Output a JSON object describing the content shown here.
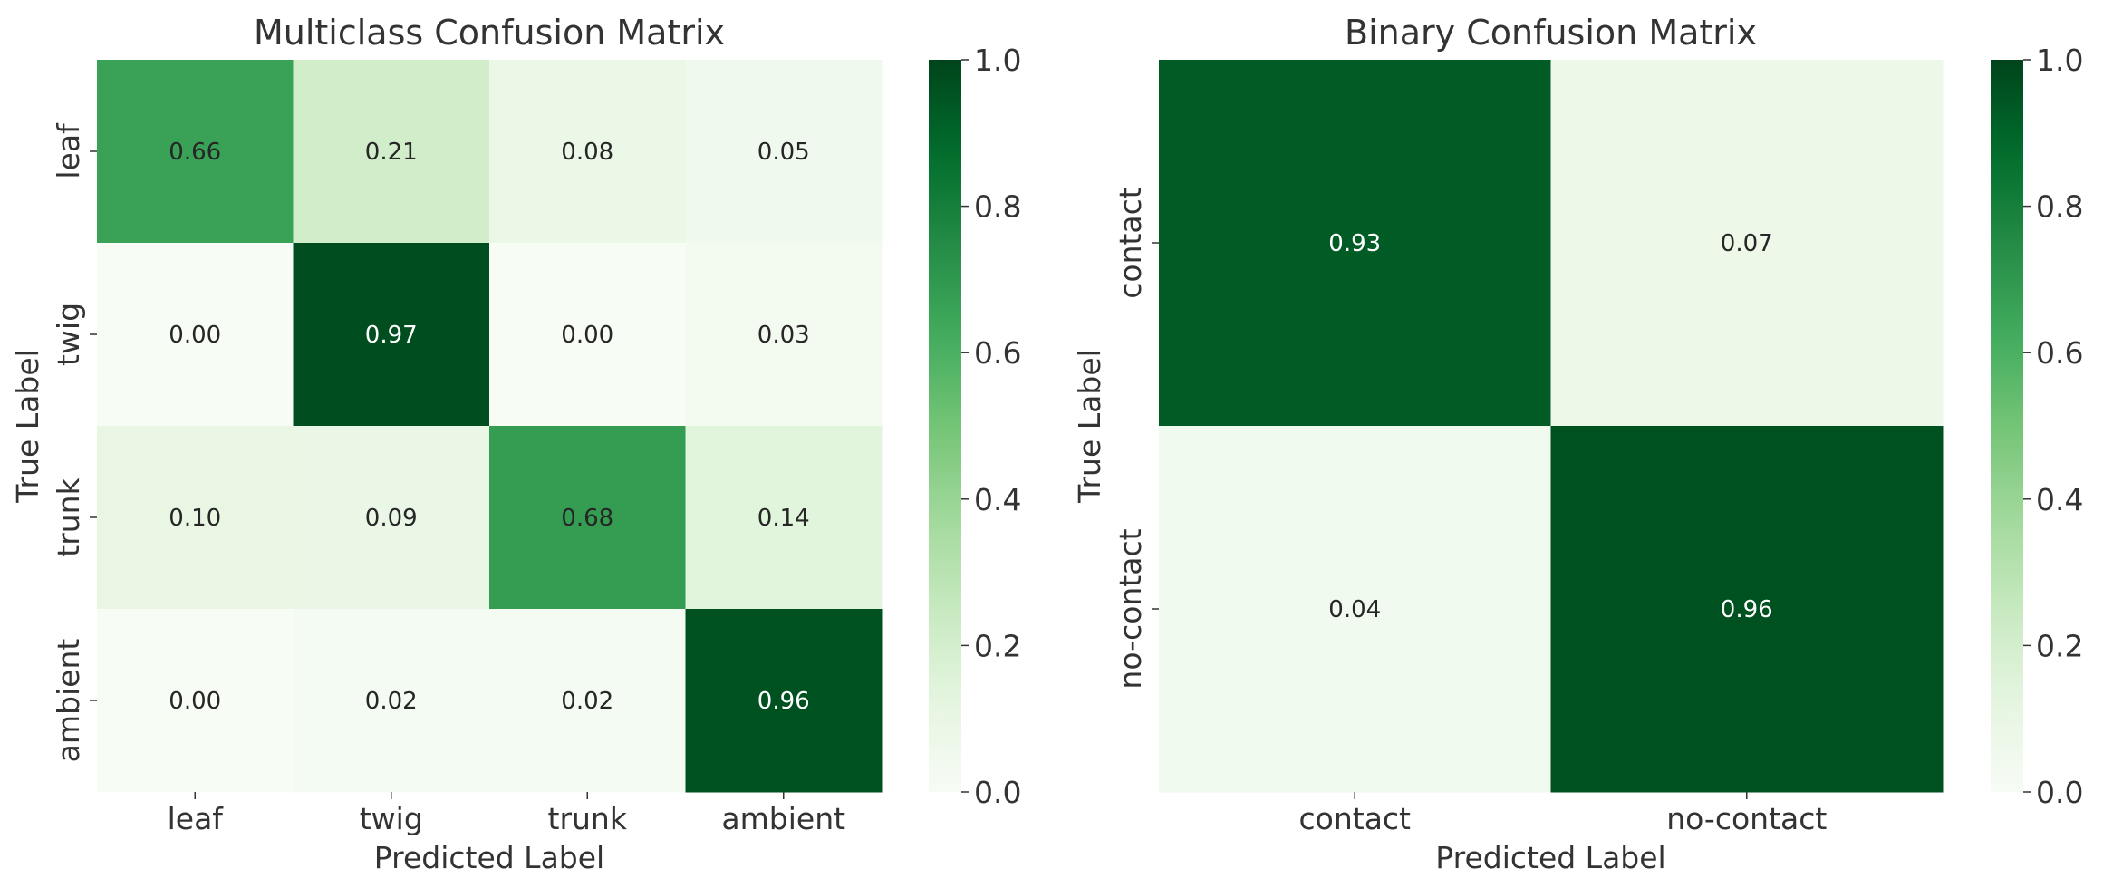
{
  "chart_data": [
    {
      "type": "heatmap",
      "title": "Multiclass Confusion Matrix",
      "xlabel": "Predicted Label",
      "ylabel": "True Label",
      "x_categories": [
        "leaf",
        "twig",
        "trunk",
        "ambient"
      ],
      "y_categories": [
        "leaf",
        "twig",
        "trunk",
        "ambient"
      ],
      "values": [
        [
          0.66,
          0.21,
          0.08,
          0.05
        ],
        [
          0.0,
          0.97,
          0.0,
          0.03
        ],
        [
          0.1,
          0.09,
          0.68,
          0.14
        ],
        [
          0.0,
          0.02,
          0.02,
          0.96
        ]
      ],
      "value_labels": [
        [
          "0.66",
          "0.21",
          "0.08",
          "0.05"
        ],
        [
          "0.00",
          "0.97",
          "0.00",
          "0.03"
        ],
        [
          "0.10",
          "0.09",
          "0.68",
          "0.14"
        ],
        [
          "0.00",
          "0.02",
          "0.02",
          "0.96"
        ]
      ],
      "colorbar": {
        "range": [
          0.0,
          1.0
        ],
        "ticks": [
          0.0,
          0.2,
          0.4,
          0.6,
          0.8,
          1.0
        ],
        "tick_labels": [
          "0.0",
          "0.2",
          "0.4",
          "0.6",
          "0.8",
          "1.0"
        ],
        "colormap": "Greens"
      }
    },
    {
      "type": "heatmap",
      "title": "Binary Confusion Matrix",
      "xlabel": "Predicted Label",
      "ylabel": "True Label",
      "x_categories": [
        "contact",
        "no-contact"
      ],
      "y_categories": [
        "contact",
        "no-contact"
      ],
      "values": [
        [
          0.93,
          0.07
        ],
        [
          0.04,
          0.96
        ]
      ],
      "value_labels": [
        [
          "0.93",
          "0.07"
        ],
        [
          "0.04",
          "0.96"
        ]
      ],
      "colorbar": {
        "range": [
          0.0,
          1.0
        ],
        "ticks": [
          0.0,
          0.2,
          0.4,
          0.6,
          0.8,
          1.0
        ],
        "tick_labels": [
          "0.0",
          "0.2",
          "0.4",
          "0.6",
          "0.8",
          "1.0"
        ],
        "colormap": "Greens"
      }
    }
  ]
}
